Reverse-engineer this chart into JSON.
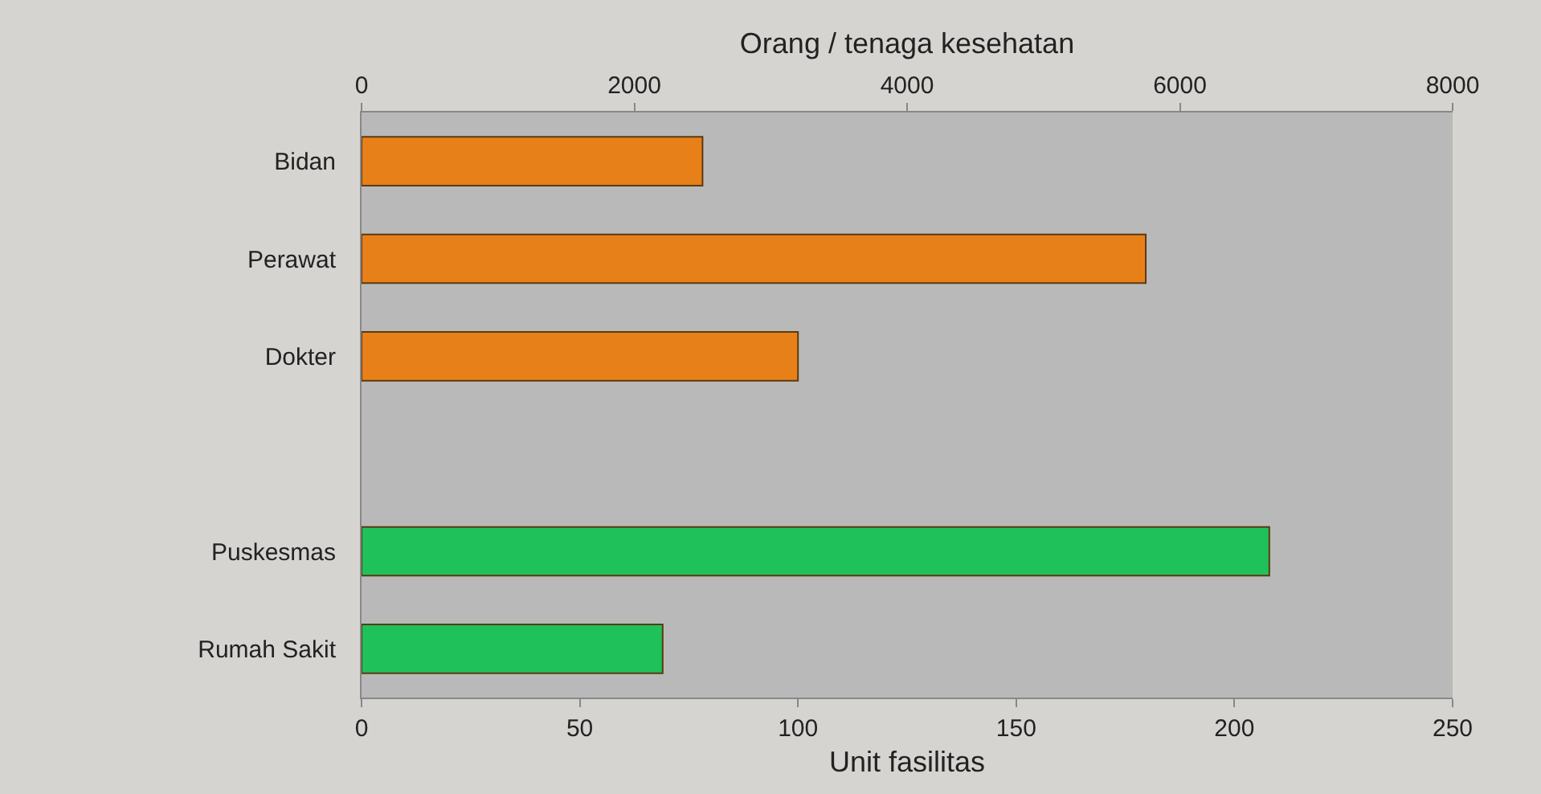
{
  "chart_data": {
    "type": "bar",
    "orientation": "horizontal",
    "categories": [
      "Bidan",
      "Perawat",
      "Dokter",
      null,
      "Puskesmas",
      "Rumah Sakit"
    ],
    "series": [
      {
        "color": "#e8801a",
        "axis": "x2",
        "values": [
          2500,
          5750,
          3200,
          null,
          null,
          null
        ]
      },
      {
        "color": "#1fc25a",
        "values": [
          null,
          null,
          null,
          null,
          208,
          69
        ]
      }
    ],
    "xlim": [
      0,
      250
    ],
    "xticks": [
      0,
      50,
      100,
      150,
      200,
      250
    ],
    "x2lim": [
      0,
      8000
    ],
    "x2ticks": [
      0,
      2000,
      4000,
      6000,
      8000
    ],
    "xlabel": "Unit fasilitas",
    "x2label": "Orang / tenaga kesehatan",
    "grid": false
  }
}
